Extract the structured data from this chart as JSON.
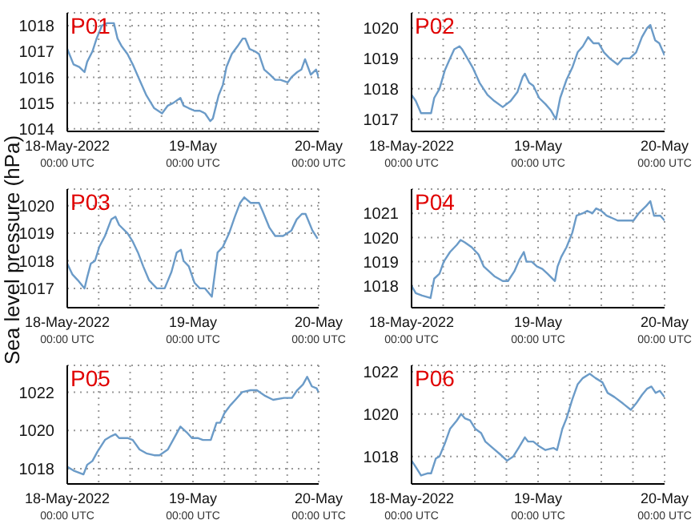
{
  "chart_data": [
    {
      "type": "line",
      "title": "P01",
      "color": "#6b9bc8",
      "grid": true,
      "xlim": [
        "2022-05-18T00:00",
        "2022-05-20T00:00"
      ],
      "xticks": [
        {
          "value": "2022-05-18T00:00",
          "label": "18-May-2022\n00:00 UTC"
        },
        {
          "value": "2022-05-18T06:00",
          "label": null
        },
        {
          "value": "2022-05-18T12:00",
          "label": null
        },
        {
          "value": "2022-05-18T18:00",
          "label": null
        },
        {
          "value": "2022-05-19T00:00",
          "label": "19-May\n00:00 UTC"
        },
        {
          "value": "2022-05-19T06:00",
          "label": null
        },
        {
          "value": "2022-05-19T12:00",
          "label": null
        },
        {
          "value": "2022-05-19T18:00",
          "label": null
        },
        {
          "value": "2022-05-20T00:00",
          "label": "20-May\n00:00 UTC"
        }
      ],
      "ylim": [
        1013.9,
        1018.5
      ],
      "yticks": [
        1014,
        1015,
        1016,
        1017,
        1018
      ],
      "x": [
        "2022-05-18T00:00",
        "2022-05-18T01:12",
        "2022-05-18T02:18",
        "2022-05-18T03:18",
        "2022-05-18T03:48",
        "2022-05-18T04:48",
        "2022-05-18T05:36",
        "2022-05-18T06:36",
        "2022-05-18T07:36",
        "2022-05-18T08:54",
        "2022-05-18T09:36",
        "2022-05-18T10:24",
        "2022-05-18T11:30",
        "2022-05-18T12:30",
        "2022-05-18T13:48",
        "2022-05-18T15:06",
        "2022-05-18T16:36",
        "2022-05-18T18:06",
        "2022-05-18T19:12",
        "2022-05-18T20:12",
        "2022-05-18T21:36",
        "2022-05-18T22:12",
        "2022-05-18T23:12",
        "2022-05-19T00:18",
        "2022-05-19T01:18",
        "2022-05-19T02:18",
        "2022-05-19T03:18",
        "2022-05-19T03:48",
        "2022-05-19T04:54",
        "2022-05-19T05:42",
        "2022-05-19T06:24",
        "2022-05-19T07:24",
        "2022-05-19T08:30",
        "2022-05-19T09:30",
        "2022-05-19T10:00",
        "2022-05-19T10:48",
        "2022-05-19T11:54",
        "2022-05-19T12:36",
        "2022-05-19T13:36",
        "2022-05-19T14:42",
        "2022-05-19T15:42",
        "2022-05-19T16:42",
        "2022-05-19T18:06",
        "2022-05-19T18:48",
        "2022-05-19T19:54",
        "2022-05-19T20:42",
        "2022-05-19T21:24",
        "2022-05-19T22:30",
        "2022-05-19T23:30",
        "2022-05-20T00:00"
      ],
      "values": [
        1017.1,
        1016.5,
        1016.4,
        1016.2,
        1016.6,
        1017.0,
        1017.5,
        1018.0,
        1018.1,
        1018.1,
        1017.5,
        1017.2,
        1016.9,
        1016.5,
        1015.9,
        1015.3,
        1014.8,
        1014.6,
        1014.9,
        1015.0,
        1015.2,
        1014.9,
        1014.8,
        1014.7,
        1014.7,
        1014.6,
        1014.3,
        1014.4,
        1015.3,
        1015.7,
        1016.4,
        1016.9,
        1017.2,
        1017.5,
        1017.5,
        1017.1,
        1017.0,
        1016.9,
        1016.3,
        1016.1,
        1015.9,
        1015.9,
        1015.8,
        1016.0,
        1016.2,
        1016.3,
        1016.7,
        1016.1,
        1016.3,
        1016.0
      ]
    },
    {
      "type": "line",
      "title": "P02",
      "color": "#6b9bc8",
      "grid": true,
      "xlim": [
        "2022-05-18T00:00",
        "2022-05-20T00:00"
      ],
      "xticks": [
        {
          "value": "2022-05-18T00:00",
          "label": "18-May-2022\n00:00 UTC"
        },
        {
          "value": "2022-05-18T06:00",
          "label": null
        },
        {
          "value": "2022-05-18T12:00",
          "label": null
        },
        {
          "value": "2022-05-18T18:00",
          "label": null
        },
        {
          "value": "2022-05-19T00:00",
          "label": "19-May\n00:00 UTC"
        },
        {
          "value": "2022-05-19T06:00",
          "label": null
        },
        {
          "value": "2022-05-19T12:00",
          "label": null
        },
        {
          "value": "2022-05-19T18:00",
          "label": null
        },
        {
          "value": "2022-05-20T00:00",
          "label": "20-May\n00:00 UTC"
        }
      ],
      "ylim": [
        1016.6,
        1020.5
      ],
      "yticks": [
        1017,
        1018,
        1019,
        1020
      ],
      "x": [
        "2022-05-18T00:00",
        "2022-05-18T00:48",
        "2022-05-18T01:48",
        "2022-05-18T03:00",
        "2022-05-18T03:42",
        "2022-05-18T04:18",
        "2022-05-18T05:18",
        "2022-05-18T06:18",
        "2022-05-18T07:18",
        "2022-05-18T08:06",
        "2022-05-18T09:06",
        "2022-05-18T09:36",
        "2022-05-18T10:36",
        "2022-05-18T11:36",
        "2022-05-18T12:54",
        "2022-05-18T14:24",
        "2022-05-18T15:42",
        "2022-05-18T17:18",
        "2022-05-18T18:48",
        "2022-05-18T20:06",
        "2022-05-18T21:06",
        "2022-05-18T21:30",
        "2022-05-18T22:18",
        "2022-05-18T23:06",
        "2022-05-19T00:12",
        "2022-05-19T01:24",
        "2022-05-19T02:24",
        "2022-05-19T03:24",
        "2022-05-19T04:12",
        "2022-05-19T05:24",
        "2022-05-19T06:30",
        "2022-05-19T07:30",
        "2022-05-19T08:30",
        "2022-05-19T09:30",
        "2022-05-19T10:30",
        "2022-05-19T11:30",
        "2022-05-19T12:30",
        "2022-05-19T13:36",
        "2022-05-19T15:06",
        "2022-05-19T16:06",
        "2022-05-19T17:24",
        "2022-05-19T18:36",
        "2022-05-19T19:42",
        "2022-05-19T20:42",
        "2022-05-19T21:18",
        "2022-05-19T22:12",
        "2022-05-19T23:00",
        "2022-05-20T00:00"
      ],
      "values": [
        1017.8,
        1017.6,
        1017.2,
        1017.2,
        1017.2,
        1017.7,
        1018.0,
        1018.6,
        1019.0,
        1019.3,
        1019.4,
        1019.3,
        1019.0,
        1018.7,
        1018.2,
        1017.8,
        1017.6,
        1017.4,
        1017.6,
        1017.9,
        1018.4,
        1018.5,
        1018.2,
        1018.1,
        1017.7,
        1017.5,
        1017.3,
        1017.0,
        1017.7,
        1018.3,
        1018.7,
        1019.2,
        1019.4,
        1019.7,
        1019.5,
        1019.5,
        1019.2,
        1019.0,
        1018.8,
        1019.0,
        1019.0,
        1019.2,
        1019.7,
        1020.0,
        1020.1,
        1019.6,
        1019.5,
        1019.1
      ]
    },
    {
      "type": "line",
      "title": "P03",
      "ylabel": "Sea level pressure (hPa)",
      "color": "#6b9bc8",
      "grid": true,
      "xlim": [
        "2022-05-18T00:00",
        "2022-05-20T00:00"
      ],
      "xticks": [
        {
          "value": "2022-05-18T00:00",
          "label": "18-May-2022\n00:00 UTC"
        },
        {
          "value": "2022-05-18T06:00",
          "label": null
        },
        {
          "value": "2022-05-18T12:00",
          "label": null
        },
        {
          "value": "2022-05-18T18:00",
          "label": null
        },
        {
          "value": "2022-05-19T00:00",
          "label": "19-May\n00:00 UTC"
        },
        {
          "value": "2022-05-19T06:00",
          "label": null
        },
        {
          "value": "2022-05-19T12:00",
          "label": null
        },
        {
          "value": "2022-05-19T18:00",
          "label": null
        },
        {
          "value": "2022-05-20T00:00",
          "label": "20-May\n00:00 UTC"
        }
      ],
      "ylim": [
        1016.3,
        1020.6
      ],
      "yticks": [
        1017,
        1018,
        1019,
        1020
      ],
      "x": [
        "2022-05-18T00:00",
        "2022-05-18T01:00",
        "2022-05-18T02:00",
        "2022-05-18T03:18",
        "2022-05-18T03:48",
        "2022-05-18T04:30",
        "2022-05-18T05:18",
        "2022-05-18T06:06",
        "2022-05-18T07:12",
        "2022-05-18T08:24",
        "2022-05-18T09:12",
        "2022-05-18T09:54",
        "2022-05-18T11:30",
        "2022-05-18T12:30",
        "2022-05-18T13:30",
        "2022-05-18T14:30",
        "2022-05-18T15:36",
        "2022-05-18T17:06",
        "2022-05-18T18:36",
        "2022-05-18T19:54",
        "2022-05-18T20:54",
        "2022-05-18T21:42",
        "2022-05-18T22:12",
        "2022-05-18T23:12",
        "2022-05-19T00:18",
        "2022-05-19T01:18",
        "2022-05-19T02:18",
        "2022-05-19T03:36",
        "2022-05-19T04:42",
        "2022-05-19T05:42",
        "2022-05-19T06:54",
        "2022-05-19T08:00",
        "2022-05-19T09:00",
        "2022-05-19T09:48",
        "2022-05-19T11:00",
        "2022-05-19T12:36",
        "2022-05-19T13:18",
        "2022-05-19T14:36",
        "2022-05-19T15:42",
        "2022-05-19T17:12",
        "2022-05-19T18:48",
        "2022-05-19T19:48",
        "2022-05-19T20:48",
        "2022-05-19T21:30",
        "2022-05-19T22:48",
        "2022-05-19T23:48"
      ],
      "values": [
        1017.9,
        1017.5,
        1017.3,
        1017.0,
        1017.4,
        1017.9,
        1018.0,
        1018.5,
        1018.9,
        1019.5,
        1019.6,
        1019.3,
        1019.0,
        1018.7,
        1018.3,
        1017.8,
        1017.3,
        1017.0,
        1017.0,
        1017.6,
        1018.3,
        1018.4,
        1018.0,
        1017.8,
        1017.2,
        1017.0,
        1017.0,
        1016.7,
        1018.3,
        1018.5,
        1019.0,
        1019.6,
        1020.1,
        1020.3,
        1020.1,
        1020.1,
        1019.8,
        1019.2,
        1018.9,
        1018.9,
        1019.1,
        1019.5,
        1019.7,
        1019.7,
        1019.1,
        1018.8
      ]
    },
    {
      "type": "line",
      "title": "P04",
      "color": "#6b9bc8",
      "grid": true,
      "xlim": [
        "2022-05-18T00:00",
        "2022-05-20T00:00"
      ],
      "xticks": [
        {
          "value": "2022-05-18T00:00",
          "label": "18-May-2022\n00:00 UTC"
        },
        {
          "value": "2022-05-18T06:00",
          "label": null
        },
        {
          "value": "2022-05-18T12:00",
          "label": null
        },
        {
          "value": "2022-05-18T18:00",
          "label": null
        },
        {
          "value": "2022-05-19T00:00",
          "label": "19-May\n00:00 UTC"
        },
        {
          "value": "2022-05-19T06:00",
          "label": null
        },
        {
          "value": "2022-05-19T12:00",
          "label": null
        },
        {
          "value": "2022-05-19T18:00",
          "label": null
        },
        {
          "value": "2022-05-20T00:00",
          "label": "20-May\n00:00 UTC"
        }
      ],
      "ylim": [
        1017.1,
        1022.0
      ],
      "yticks": [
        1018,
        1019,
        1020,
        1021
      ],
      "x": [
        "2022-05-18T00:00",
        "2022-05-18T00:48",
        "2022-05-18T02:00",
        "2022-05-18T03:36",
        "2022-05-18T04:18",
        "2022-05-18T05:18",
        "2022-05-18T06:06",
        "2022-05-18T07:18",
        "2022-05-18T08:36",
        "2022-05-18T09:18",
        "2022-05-18T10:06",
        "2022-05-18T11:24",
        "2022-05-18T12:42",
        "2022-05-18T13:42",
        "2022-05-18T14:42",
        "2022-05-18T15:42",
        "2022-05-18T17:18",
        "2022-05-18T18:18",
        "2022-05-18T19:30",
        "2022-05-18T20:30",
        "2022-05-18T21:18",
        "2022-05-18T21:48",
        "2022-05-18T22:48",
        "2022-05-18T23:48",
        "2022-05-19T00:48",
        "2022-05-19T01:48",
        "2022-05-19T03:12",
        "2022-05-19T03:42",
        "2022-05-19T04:24",
        "2022-05-19T05:24",
        "2022-05-19T06:30",
        "2022-05-19T07:18",
        "2022-05-19T08:30",
        "2022-05-19T09:18",
        "2022-05-19T10:18",
        "2022-05-19T11:00",
        "2022-05-19T12:00",
        "2022-05-19T13:00",
        "2022-05-19T14:06",
        "2022-05-19T15:06",
        "2022-05-19T16:36",
        "2022-05-19T18:06",
        "2022-05-19T19:06",
        "2022-05-19T20:30",
        "2022-05-19T21:18",
        "2022-05-19T22:00",
        "2022-05-19T23:12",
        "2022-05-20T00:00"
      ],
      "values": [
        1018.0,
        1017.7,
        1017.6,
        1017.5,
        1018.3,
        1018.5,
        1019.0,
        1019.4,
        1019.7,
        1019.9,
        1019.8,
        1019.6,
        1019.3,
        1018.8,
        1018.6,
        1018.4,
        1018.2,
        1018.2,
        1018.6,
        1019.1,
        1019.4,
        1019.0,
        1019.0,
        1018.8,
        1018.7,
        1018.5,
        1018.2,
        1018.8,
        1019.2,
        1019.6,
        1020.2,
        1020.9,
        1021.0,
        1021.1,
        1021.0,
        1021.2,
        1021.1,
        1020.9,
        1020.8,
        1020.7,
        1020.7,
        1020.7,
        1021.0,
        1021.3,
        1021.5,
        1020.9,
        1020.9,
        1020.7
      ]
    },
    {
      "type": "line",
      "title": "P05",
      "color": "#6b9bc8",
      "grid": true,
      "xlim": [
        "2022-05-18T00:00",
        "2022-05-20T00:00"
      ],
      "xticks": [
        {
          "value": "2022-05-18T00:00",
          "label": "18-May-2022\n00:00 UTC"
        },
        {
          "value": "2022-05-18T06:00",
          "label": null
        },
        {
          "value": "2022-05-18T12:00",
          "label": null
        },
        {
          "value": "2022-05-18T18:00",
          "label": null
        },
        {
          "value": "2022-05-19T00:00",
          "label": "19-May\n00:00 UTC"
        },
        {
          "value": "2022-05-19T06:00",
          "label": null
        },
        {
          "value": "2022-05-19T12:00",
          "label": null
        },
        {
          "value": "2022-05-19T18:00",
          "label": null
        },
        {
          "value": "2022-05-20T00:00",
          "label": "20-May\n00:00 UTC"
        }
      ],
      "ylim": [
        1017.2,
        1023.4
      ],
      "yticks": [
        1018,
        1020,
        1022
      ],
      "x": [
        "2022-05-18T00:00",
        "2022-05-18T01:12",
        "2022-05-18T03:06",
        "2022-05-18T03:48",
        "2022-05-18T04:48",
        "2022-05-18T05:48",
        "2022-05-18T07:12",
        "2022-05-18T08:24",
        "2022-05-18T09:12",
        "2022-05-18T09:54",
        "2022-05-18T11:30",
        "2022-05-18T12:30",
        "2022-05-18T13:48",
        "2022-05-18T15:06",
        "2022-05-18T16:36",
        "2022-05-18T17:36",
        "2022-05-18T19:12",
        "2022-05-18T20:12",
        "2022-05-18T21:36",
        "2022-05-18T22:48",
        "2022-05-18T23:48",
        "2022-05-19T00:54",
        "2022-05-19T01:54",
        "2022-05-19T03:24",
        "2022-05-19T04:30",
        "2022-05-19T05:12",
        "2022-05-19T06:00",
        "2022-05-19T07:06",
        "2022-05-19T08:06",
        "2022-05-19T09:24",
        "2022-05-19T11:00",
        "2022-05-19T12:12",
        "2022-05-19T13:48",
        "2022-05-19T15:18",
        "2022-05-19T17:24",
        "2022-05-19T18:54",
        "2022-05-19T19:54",
        "2022-05-19T21:00",
        "2022-05-19T21:48",
        "2022-05-19T22:42",
        "2022-05-19T23:36",
        "2022-05-20T00:00"
      ],
      "values": [
        1018.1,
        1017.9,
        1017.7,
        1018.2,
        1018.4,
        1018.9,
        1019.5,
        1019.7,
        1019.8,
        1019.6,
        1019.6,
        1019.5,
        1019.0,
        1018.8,
        1018.7,
        1018.7,
        1019.0,
        1019.5,
        1020.2,
        1019.9,
        1019.6,
        1019.6,
        1019.5,
        1019.5,
        1020.4,
        1020.4,
        1020.9,
        1021.3,
        1021.6,
        1022.0,
        1022.1,
        1022.1,
        1021.8,
        1021.6,
        1021.7,
        1021.7,
        1022.1,
        1022.4,
        1022.8,
        1022.3,
        1022.2,
        1022.0
      ]
    },
    {
      "type": "line",
      "title": "P06",
      "color": "#6b9bc8",
      "grid": true,
      "xlim": [
        "2022-05-18T00:00",
        "2022-05-20T00:00"
      ],
      "xticks": [
        {
          "value": "2022-05-18T00:00",
          "label": "18-May-2022\n00:00 UTC"
        },
        {
          "value": "2022-05-18T06:00",
          "label": null
        },
        {
          "value": "2022-05-18T12:00",
          "label": null
        },
        {
          "value": "2022-05-18T18:00",
          "label": null
        },
        {
          "value": "2022-05-19T00:00",
          "label": "19-May\n00:00 UTC"
        },
        {
          "value": "2022-05-19T06:00",
          "label": null
        },
        {
          "value": "2022-05-19T12:00",
          "label": null
        },
        {
          "value": "2022-05-19T18:00",
          "label": null
        },
        {
          "value": "2022-05-20T00:00",
          "label": "20-May\n00:00 UTC"
        }
      ],
      "ylim": [
        1016.7,
        1022.3
      ],
      "yticks": [
        1018,
        1020,
        1022
      ],
      "x": [
        "2022-05-18T00:00",
        "2022-05-18T00:48",
        "2022-05-18T01:48",
        "2022-05-18T03:00",
        "2022-05-18T03:42",
        "2022-05-18T04:36",
        "2022-05-18T05:18",
        "2022-05-18T06:18",
        "2022-05-18T07:18",
        "2022-05-18T08:36",
        "2022-05-18T09:24",
        "2022-05-18T10:06",
        "2022-05-18T11:06",
        "2022-05-18T12:06",
        "2022-05-18T13:12",
        "2022-05-18T14:00",
        "2022-05-18T15:24",
        "2022-05-18T16:48",
        "2022-05-18T18:06",
        "2022-05-18T19:18",
        "2022-05-18T20:18",
        "2022-05-18T21:30",
        "2022-05-18T22:06",
        "2022-05-18T23:06",
        "2022-05-19T00:06",
        "2022-05-19T01:24",
        "2022-05-19T02:54",
        "2022-05-19T03:36",
        "2022-05-19T04:36",
        "2022-05-19T05:24",
        "2022-05-19T06:30",
        "2022-05-19T07:30",
        "2022-05-19T08:30",
        "2022-05-19T09:48",
        "2022-05-19T10:54",
        "2022-05-19T12:12",
        "2022-05-19T13:12",
        "2022-05-19T14:30",
        "2022-05-19T16:06",
        "2022-05-19T17:36",
        "2022-05-19T18:36",
        "2022-05-19T19:42",
        "2022-05-19T20:42",
        "2022-05-19T21:30",
        "2022-05-19T22:18",
        "2022-05-19T23:06",
        "2022-05-20T00:00"
      ],
      "values": [
        1017.8,
        1017.5,
        1017.1,
        1017.2,
        1017.2,
        1017.9,
        1018.0,
        1018.6,
        1019.3,
        1019.7,
        1020.0,
        1019.8,
        1019.7,
        1019.3,
        1019.1,
        1018.7,
        1018.4,
        1018.1,
        1017.8,
        1018.0,
        1018.4,
        1018.9,
        1018.7,
        1018.7,
        1018.5,
        1018.3,
        1018.4,
        1018.3,
        1019.3,
        1019.8,
        1020.7,
        1021.4,
        1021.7,
        1021.9,
        1021.7,
        1021.5,
        1021.0,
        1020.8,
        1020.5,
        1020.2,
        1020.5,
        1020.9,
        1021.2,
        1021.3,
        1021.0,
        1021.1,
        1020.8
      ]
    }
  ]
}
